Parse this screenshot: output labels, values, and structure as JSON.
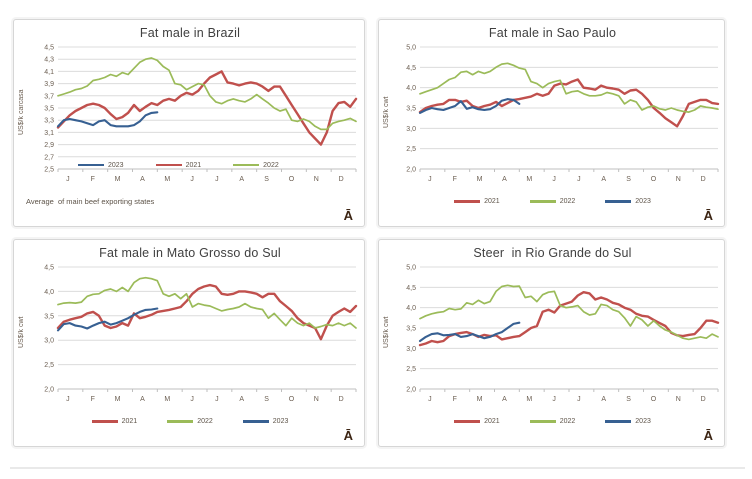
{
  "page": {
    "background": "#ffffff",
    "divider_color": "#e9e9e9"
  },
  "colors": {
    "grid": "#dcdcdc",
    "axis": "#bfbfbf",
    "tick_text": "#6b5e51",
    "title_text": "#404040",
    "glyph_color": "#3b2413",
    "red_2021": "#C0504D",
    "green_2022": "#9BBB59",
    "blue_2023": "#376092"
  },
  "chart_data": [
    {
      "type": "line",
      "title": "Fat male in Brazil",
      "ylabel": "US$/k carcasa",
      "footnote": "Average  of main beef exporting states",
      "corner_glyph": "Ā",
      "ylim": [
        2.5,
        4.5
      ],
      "yticks": [
        2.5,
        2.7,
        2.9,
        3.1,
        3.3,
        3.5,
        3.7,
        3.9,
        4.1,
        4.3,
        4.5
      ],
      "categories": [
        "J",
        "F",
        "M",
        "A",
        "M",
        "J",
        "J",
        "A",
        "S",
        "O",
        "N",
        "D"
      ],
      "x_count": 52,
      "legend_order": [
        "2023",
        "2021",
        "2022"
      ],
      "legend_position": "inside-bottom",
      "series": [
        {
          "name": "2021",
          "color": "#C0504D",
          "stroke_width": 2.4,
          "values": [
            3.18,
            3.28,
            3.38,
            3.45,
            3.5,
            3.55,
            3.57,
            3.55,
            3.5,
            3.4,
            3.32,
            3.35,
            3.42,
            3.55,
            3.45,
            3.52,
            3.58,
            3.55,
            3.62,
            3.65,
            3.62,
            3.7,
            3.75,
            3.72,
            3.78,
            3.9,
            4.0,
            4.05,
            4.1,
            3.92,
            3.9,
            3.87,
            3.9,
            3.92,
            3.9,
            3.85,
            3.78,
            3.85,
            3.85,
            3.7,
            3.55,
            3.4,
            3.25,
            3.1,
            3.0,
            2.9,
            3.1,
            3.45,
            3.58,
            3.6,
            3.52,
            3.65
          ]
        },
        {
          "name": "2022",
          "color": "#9BBB59",
          "stroke_width": 1.7,
          "values": [
            3.7,
            3.73,
            3.76,
            3.8,
            3.82,
            3.86,
            3.95,
            3.97,
            4.0,
            4.05,
            4.02,
            4.08,
            4.05,
            4.15,
            4.25,
            4.3,
            4.32,
            4.28,
            4.18,
            4.12,
            3.9,
            3.88,
            3.8,
            3.85,
            3.9,
            3.88,
            3.7,
            3.6,
            3.57,
            3.62,
            3.65,
            3.62,
            3.6,
            3.65,
            3.72,
            3.65,
            3.58,
            3.5,
            3.45,
            3.48,
            3.3,
            3.28,
            3.32,
            3.28,
            3.2,
            3.15,
            3.15,
            3.25,
            3.28,
            3.3,
            3.33,
            3.28
          ]
        },
        {
          "name": "2023",
          "color": "#376092",
          "stroke_width": 2.1,
          "values": [
            3.2,
            3.3,
            3.32,
            3.3,
            3.28,
            3.25,
            3.22,
            3.28,
            3.3,
            3.22,
            3.2,
            3.2,
            3.2,
            3.22,
            3.28,
            3.38,
            3.42,
            3.43
          ]
        }
      ]
    },
    {
      "type": "line",
      "title": "Fat male in Sao Paulo",
      "ylabel": "US$/k cwt",
      "corner_glyph": "Ā",
      "ylim": [
        2.0,
        5.0
      ],
      "yticks": [
        2.0,
        2.5,
        3.0,
        3.5,
        4.0,
        4.5,
        5.0
      ],
      "categories": [
        "J",
        "F",
        "M",
        "A",
        "M",
        "J",
        "J",
        "A",
        "S",
        "O",
        "N",
        "D"
      ],
      "x_count": 52,
      "legend_order": [
        "2021",
        "2022",
        "2023"
      ],
      "legend_position": "bottom",
      "series": [
        {
          "name": "2021",
          "color": "#C0504D",
          "stroke_width": 2.4,
          "values": [
            3.4,
            3.5,
            3.55,
            3.58,
            3.6,
            3.7,
            3.7,
            3.65,
            3.68,
            3.55,
            3.5,
            3.55,
            3.58,
            3.65,
            3.55,
            3.62,
            3.7,
            3.72,
            3.75,
            3.78,
            3.85,
            3.8,
            3.85,
            4.05,
            4.1,
            4.08,
            4.15,
            4.2,
            4.0,
            3.98,
            3.95,
            4.05,
            4.0,
            3.98,
            3.95,
            3.85,
            3.93,
            3.95,
            3.85,
            3.7,
            3.5,
            3.38,
            3.25,
            3.15,
            3.05,
            3.3,
            3.6,
            3.65,
            3.7,
            3.7,
            3.62,
            3.6
          ]
        },
        {
          "name": "2022",
          "color": "#9BBB59",
          "stroke_width": 1.7,
          "values": [
            3.85,
            3.9,
            3.95,
            4.0,
            4.1,
            4.2,
            4.25,
            4.38,
            4.4,
            4.32,
            4.4,
            4.35,
            4.4,
            4.5,
            4.58,
            4.6,
            4.55,
            4.48,
            4.45,
            4.15,
            4.1,
            4.0,
            4.1,
            4.15,
            4.18,
            3.85,
            3.9,
            3.92,
            3.85,
            3.8,
            3.8,
            3.82,
            3.88,
            3.85,
            3.8,
            3.6,
            3.7,
            3.65,
            3.45,
            3.52,
            3.55,
            3.48,
            3.45,
            3.5,
            3.45,
            3.42,
            3.4,
            3.45,
            3.55,
            3.52,
            3.5,
            3.47
          ]
        },
        {
          "name": "2023",
          "color": "#376092",
          "stroke_width": 2.1,
          "values": [
            3.38,
            3.45,
            3.5,
            3.47,
            3.45,
            3.5,
            3.55,
            3.67,
            3.48,
            3.52,
            3.47,
            3.45,
            3.47,
            3.55,
            3.68,
            3.72,
            3.7,
            3.6
          ]
        }
      ]
    },
    {
      "type": "line",
      "title": "Fat male in Mato Grosso do Sul",
      "ylabel": "US$/k cwt",
      "corner_glyph": "Ā",
      "ylim": [
        2.0,
        4.5
      ],
      "yticks": [
        2.0,
        2.5,
        3.0,
        3.5,
        4.0,
        4.5
      ],
      "categories": [
        "J",
        "F",
        "M",
        "A",
        "M",
        "J",
        "J",
        "A",
        "S",
        "O",
        "N",
        "D"
      ],
      "x_count": 52,
      "legend_order": [
        "2021",
        "2022",
        "2023"
      ],
      "legend_position": "bottom",
      "series": [
        {
          "name": "2021",
          "color": "#C0504D",
          "stroke_width": 2.4,
          "values": [
            3.25,
            3.38,
            3.42,
            3.45,
            3.48,
            3.55,
            3.58,
            3.5,
            3.3,
            3.25,
            3.28,
            3.35,
            3.3,
            3.55,
            3.45,
            3.48,
            3.52,
            3.58,
            3.6,
            3.62,
            3.65,
            3.68,
            3.8,
            3.95,
            4.05,
            4.1,
            4.13,
            4.1,
            3.95,
            3.93,
            3.95,
            4.0,
            4.0,
            3.98,
            3.95,
            3.88,
            3.95,
            3.95,
            3.8,
            3.7,
            3.6,
            3.45,
            3.35,
            3.3,
            3.25,
            3.02,
            3.3,
            3.5,
            3.58,
            3.65,
            3.58,
            3.7
          ]
        },
        {
          "name": "2022",
          "color": "#9BBB59",
          "stroke_width": 1.7,
          "values": [
            3.73,
            3.76,
            3.77,
            3.76,
            3.78,
            3.9,
            3.94,
            3.95,
            4.02,
            4.05,
            4.0,
            4.08,
            4.0,
            4.18,
            4.26,
            4.28,
            4.26,
            4.22,
            3.95,
            3.9,
            3.95,
            3.85,
            3.95,
            3.68,
            3.75,
            3.72,
            3.7,
            3.65,
            3.6,
            3.63,
            3.65,
            3.68,
            3.75,
            3.68,
            3.65,
            3.63,
            3.45,
            3.55,
            3.42,
            3.3,
            3.45,
            3.35,
            3.3,
            3.35,
            3.25,
            3.28,
            3.32,
            3.3,
            3.35,
            3.3,
            3.35,
            3.25
          ]
        },
        {
          "name": "2023",
          "color": "#376092",
          "stroke_width": 2.1,
          "values": [
            3.2,
            3.33,
            3.35,
            3.3,
            3.28,
            3.24,
            3.3,
            3.35,
            3.38,
            3.32,
            3.35,
            3.4,
            3.45,
            3.52,
            3.58,
            3.62,
            3.63,
            3.65
          ]
        }
      ]
    },
    {
      "type": "line",
      "title": "Steer  in Rio Grande do Sul",
      "ylabel": "US$/k cwt",
      "corner_glyph": "Ā",
      "ylim": [
        2.0,
        5.0
      ],
      "yticks": [
        2.0,
        2.5,
        3.0,
        3.5,
        4.0,
        4.5,
        5.0
      ],
      "categories": [
        "J",
        "F",
        "M",
        "A",
        "M",
        "J",
        "J",
        "A",
        "S",
        "O",
        "N",
        "D"
      ],
      "x_count": 52,
      "legend_order": [
        "2021",
        "2022",
        "2023"
      ],
      "legend_position": "bottom",
      "series": [
        {
          "name": "2021",
          "color": "#C0504D",
          "stroke_width": 2.4,
          "values": [
            3.08,
            3.12,
            3.18,
            3.15,
            3.18,
            3.3,
            3.35,
            3.38,
            3.4,
            3.35,
            3.28,
            3.33,
            3.3,
            3.32,
            3.22,
            3.25,
            3.28,
            3.3,
            3.4,
            3.5,
            3.55,
            3.9,
            3.95,
            3.88,
            4.05,
            4.1,
            4.15,
            4.3,
            4.38,
            4.35,
            4.2,
            4.25,
            4.2,
            4.12,
            4.08,
            4.0,
            3.95,
            3.85,
            3.8,
            3.78,
            3.7,
            3.62,
            3.55,
            3.38,
            3.32,
            3.3,
            3.33,
            3.35,
            3.5,
            3.68,
            3.68,
            3.63
          ]
        },
        {
          "name": "2022",
          "color": "#9BBB59",
          "stroke_width": 1.7,
          "values": [
            3.73,
            3.8,
            3.85,
            3.88,
            3.9,
            3.98,
            3.95,
            3.97,
            4.12,
            4.08,
            4.18,
            4.1,
            4.15,
            4.4,
            4.52,
            4.55,
            4.52,
            4.53,
            4.25,
            4.28,
            4.15,
            4.32,
            4.38,
            4.4,
            4.05,
            4.0,
            4.02,
            4.05,
            3.9,
            3.82,
            3.85,
            4.08,
            4.05,
            3.95,
            3.9,
            3.75,
            3.55,
            3.78,
            3.7,
            3.55,
            3.68,
            3.55,
            3.45,
            3.4,
            3.32,
            3.25,
            3.22,
            3.25,
            3.28,
            3.25,
            3.35,
            3.28
          ]
        },
        {
          "name": "2023",
          "color": "#376092",
          "stroke_width": 2.1,
          "values": [
            3.18,
            3.28,
            3.35,
            3.37,
            3.32,
            3.33,
            3.35,
            3.28,
            3.3,
            3.35,
            3.3,
            3.25,
            3.28,
            3.35,
            3.4,
            3.5,
            3.6,
            3.63
          ]
        }
      ]
    }
  ]
}
